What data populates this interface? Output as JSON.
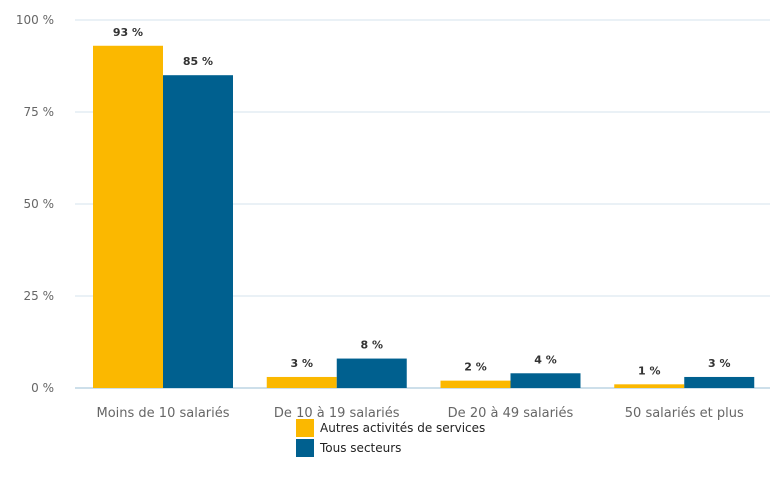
{
  "chart_data": {
    "type": "bar",
    "categories": [
      "Moins de 10 salariés",
      "De 10 à 19 salariés",
      "De 20 à 49 salariés",
      "50 salariés et plus"
    ],
    "series": [
      {
        "name": "Autres activités de services",
        "color": "#FBB800",
        "values": [
          93,
          3,
          2,
          1
        ],
        "labels": [
          "93 %",
          "3 %",
          "2 %",
          "1 %"
        ]
      },
      {
        "name": "Tous secteurs",
        "color": "#00608F",
        "values": [
          85,
          8,
          4,
          3
        ],
        "labels": [
          "85 %",
          "8 %",
          "4 %",
          "3 %"
        ]
      }
    ],
    "ylim": [
      0,
      100
    ],
    "yticks": [
      0,
      25,
      50,
      75,
      100
    ],
    "ytick_labels": [
      "0 %",
      "25 %",
      "50 %",
      "75 %",
      "100 %"
    ],
    "grid": true,
    "legend_position": "bottom-center",
    "gridline_color": "#D4E3EE",
    "axis_color": "#9BBFD6",
    "tick_label_color": "#666666"
  }
}
